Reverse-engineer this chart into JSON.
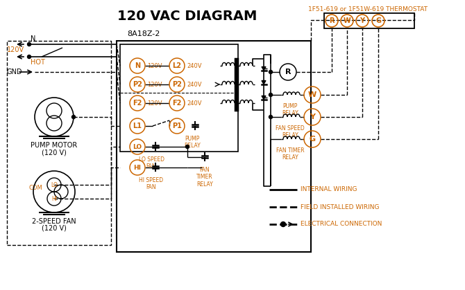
{
  "title": "120 VAC DIAGRAM",
  "title_color": "#000000",
  "title_fontsize": 14,
  "bg_color": "#ffffff",
  "thermostat_label": "1F51-619 or 1F51W-619 THERMOSTAT",
  "box_label": "8A18Z-2",
  "terminal_labels": [
    "R",
    "W",
    "Y",
    "G"
  ],
  "left_terminals": [
    "N",
    "P2",
    "F2"
  ],
  "left_voltages": [
    "120V",
    "120V",
    "120V"
  ],
  "right_terminals": [
    "L2",
    "P2",
    "F2"
  ],
  "right_voltages": [
    "240V",
    "240V",
    "240V"
  ],
  "motor_label1_line1": "PUMP MOTOR",
  "motor_label1_line2": "(120 V)",
  "motor_label2_line1": "2-SPEED FAN",
  "motor_label2_line2": "(120 V)",
  "legend_line1": "INTERNAL WIRING",
  "legend_line2": "FIELD INSTALLED WIRING",
  "legend_line3": "ELECTRICAL CONNECTION",
  "black": "#000000",
  "orange": "#cc6600"
}
